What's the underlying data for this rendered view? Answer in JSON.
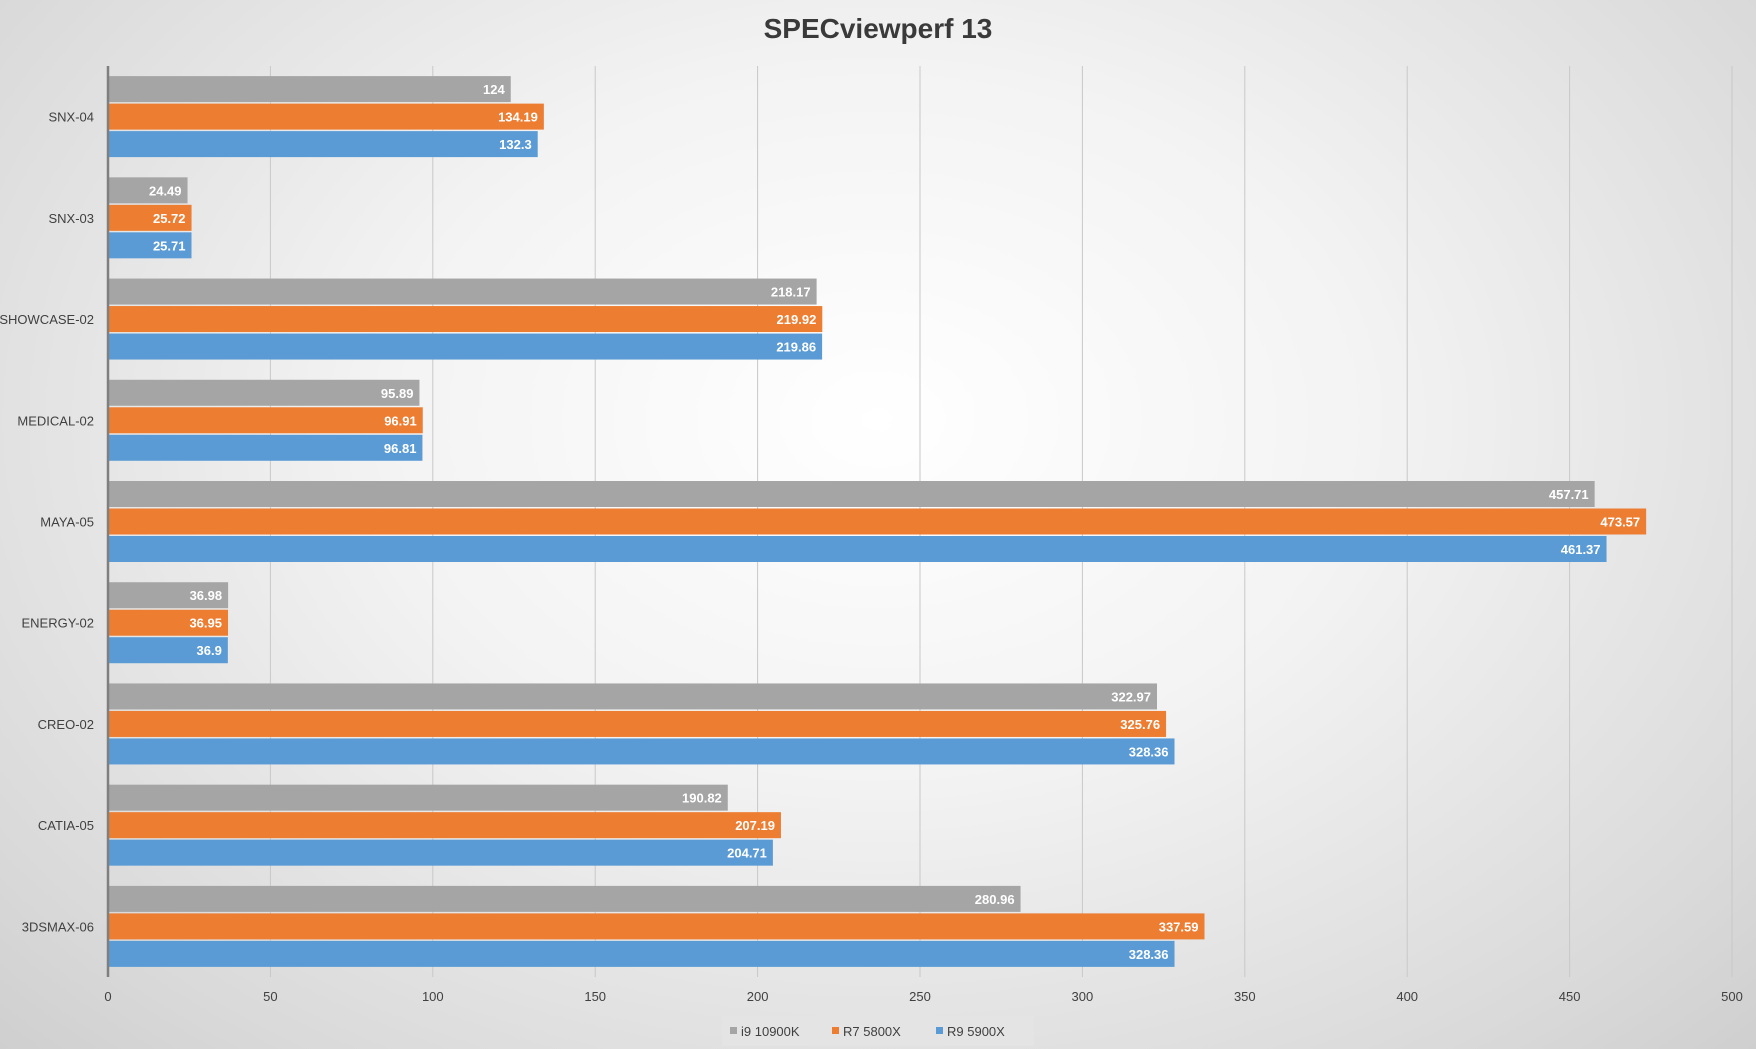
{
  "chart_data": {
    "type": "bar",
    "orientation": "horizontal",
    "title": "SPECviewperf 13",
    "xlabel": "",
    "ylabel": "",
    "xlim": [
      0,
      500
    ],
    "xticks": [
      0,
      50,
      100,
      150,
      200,
      250,
      300,
      350,
      400,
      450,
      500
    ],
    "grid": true,
    "legend_position": "bottom",
    "categories": [
      "SNX-04",
      "SNX-03",
      "SHOWCASE-02",
      "MEDICAL-02",
      "MAYA-05",
      "ENERGY-02",
      "CREO-02",
      "CATIA-05",
      "3DSMAX-06"
    ],
    "series": [
      {
        "name": "i9 10900K",
        "color": "#a5a5a5",
        "values": [
          124,
          24.49,
          218.17,
          95.89,
          457.71,
          36.98,
          322.97,
          190.82,
          280.96
        ]
      },
      {
        "name": "R7 5800X",
        "color": "#ed7d31",
        "values": [
          134.19,
          25.72,
          219.92,
          96.91,
          473.57,
          36.95,
          325.76,
          207.19,
          337.59
        ]
      },
      {
        "name": "R9 5900X",
        "color": "#5b9bd5",
        "values": [
          132.3,
          25.71,
          219.86,
          96.81,
          461.37,
          36.9,
          328.36,
          204.71,
          328.36
        ]
      }
    ]
  }
}
